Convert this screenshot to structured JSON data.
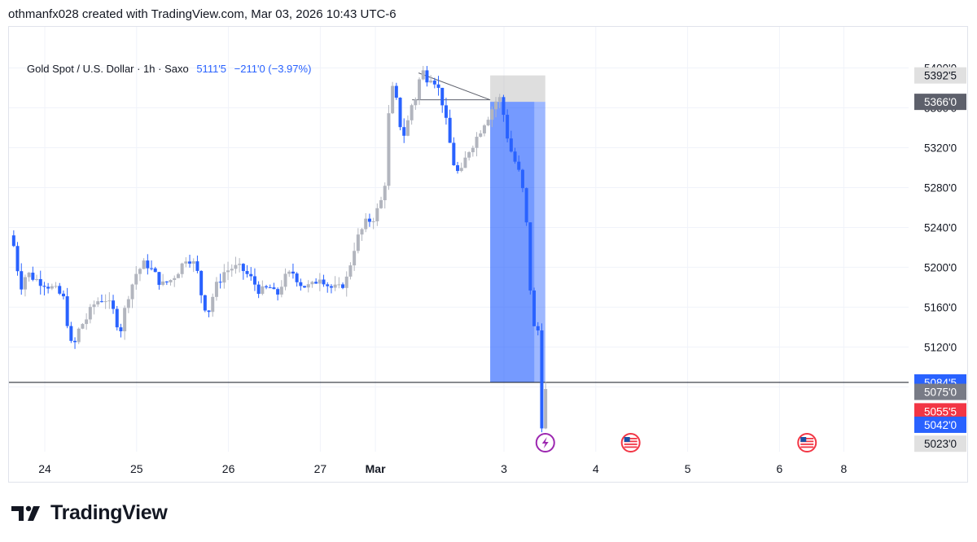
{
  "caption": "othmanfx028 created with TradingView.com, Mar 03, 2026 10:43 UTC-6",
  "legend": {
    "symbol": "Gold Spot / U.S. Dollar · 1h · Saxo",
    "last": "5111'5",
    "change": "−211'0 (−3.97%)"
  },
  "brand": {
    "name": "TradingView",
    "logo_icon": "tradingview-logo-icon"
  },
  "colors": {
    "up": "#b2b5be",
    "down": "#2962ff",
    "target_zone": "#b5b5b5",
    "stop_zone": "#2962ff",
    "price_line": "#131722",
    "grid": "#f0f3fa",
    "red_label": "#f23645"
  },
  "chart_data": {
    "type": "candlestick",
    "title": "Gold Spot / U.S. Dollar · 1h · Saxo",
    "ylim": [
      5015,
      5420
    ],
    "y_ticks": [
      "5400'0",
      "5360'0",
      "5320'0",
      "5280'0",
      "5240'0",
      "5200'0",
      "5160'0",
      "5120'0",
      "5080'0"
    ],
    "x_ticks": [
      {
        "label": "24",
        "day": 0
      },
      {
        "label": "25",
        "day": 1
      },
      {
        "label": "26",
        "day": 2
      },
      {
        "label": "27",
        "day": 3
      },
      {
        "label": "Mar",
        "day": 3.6
      },
      {
        "label": "3",
        "day": 5
      },
      {
        "label": "4",
        "day": 6
      },
      {
        "label": "5",
        "day": 7
      },
      {
        "label": "6",
        "day": 8
      },
      {
        "label": "8",
        "day": 8.7
      }
    ],
    "price_labels": [
      {
        "label": "5392'5",
        "value": 5392.5,
        "style": "light"
      },
      {
        "label": "5366'0",
        "value": 5366.0,
        "style": "dark"
      },
      {
        "label": "5084'5",
        "value": 5084.5,
        "style": "blue"
      },
      {
        "label": "5075'0",
        "value": 5075.0,
        "style": "gray"
      },
      {
        "label": "5055'5",
        "value": 5055.5,
        "style": "red"
      },
      {
        "label": "5042'0",
        "value": 5042.0,
        "style": "blue"
      },
      {
        "label": "5023'0",
        "value": 5023.0,
        "style": "light"
      }
    ],
    "horizontal_line": 5084.5,
    "position": {
      "type": "short",
      "entry": 5366.0,
      "stop": 5392.5,
      "target": 5084.5,
      "start_day": 4.85,
      "end_day": 5.45
    },
    "trend_lines": [
      {
        "from": [
          4.07,
          5395
        ],
        "to": [
          4.85,
          5368
        ]
      },
      {
        "from": [
          4.0,
          5368
        ],
        "to": [
          4.85,
          5368
        ]
      }
    ],
    "close_path": [
      [
        -0.38,
        5232
      ],
      [
        -0.35,
        5228
      ],
      [
        -0.3,
        5200
      ],
      [
        -0.25,
        5180
      ],
      [
        -0.2,
        5195
      ],
      [
        -0.1,
        5188
      ],
      [
        0.0,
        5184
      ],
      [
        0.1,
        5178
      ],
      [
        0.2,
        5170
      ],
      [
        0.3,
        5115
      ],
      [
        0.38,
        5140
      ],
      [
        0.45,
        5148
      ],
      [
        0.55,
        5165
      ],
      [
        0.65,
        5170
      ],
      [
        0.75,
        5155
      ],
      [
        0.82,
        5135
      ],
      [
        0.9,
        5170
      ],
      [
        1.0,
        5195
      ],
      [
        1.1,
        5205
      ],
      [
        1.18,
        5195
      ],
      [
        1.28,
        5182
      ],
      [
        1.38,
        5188
      ],
      [
        1.48,
        5200
      ],
      [
        1.55,
        5212
      ],
      [
        1.65,
        5200
      ],
      [
        1.72,
        5165
      ],
      [
        1.78,
        5155
      ],
      [
        1.85,
        5178
      ],
      [
        1.95,
        5195
      ],
      [
        2.05,
        5200
      ],
      [
        2.15,
        5198
      ],
      [
        2.25,
        5188
      ],
      [
        2.35,
        5175
      ],
      [
        2.45,
        5180
      ],
      [
        2.52,
        5170
      ],
      [
        2.6,
        5188
      ],
      [
        2.7,
        5195
      ],
      [
        2.8,
        5182
      ],
      [
        2.9,
        5180
      ],
      [
        3.0,
        5192
      ],
      [
        3.1,
        5180
      ],
      [
        3.2,
        5178
      ],
      [
        3.3,
        5190
      ],
      [
        3.35,
        5215
      ],
      [
        3.42,
        5232
      ],
      [
        3.5,
        5245
      ],
      [
        3.58,
        5250
      ],
      [
        3.65,
        5262
      ],
      [
        3.7,
        5280
      ],
      [
        3.75,
        5360
      ],
      [
        3.8,
        5385
      ],
      [
        3.85,
        5352
      ],
      [
        3.9,
        5330
      ],
      [
        3.95,
        5345
      ],
      [
        4.0,
        5365
      ],
      [
        4.05,
        5372
      ],
      [
        4.1,
        5400
      ],
      [
        4.15,
        5390
      ],
      [
        4.22,
        5393
      ],
      [
        4.28,
        5380
      ],
      [
        4.32,
        5370
      ],
      [
        4.38,
        5340
      ],
      [
        4.45,
        5305
      ],
      [
        4.52,
        5290
      ],
      [
        4.6,
        5315
      ],
      [
        4.7,
        5330
      ],
      [
        4.78,
        5345
      ],
      [
        4.85,
        5355
      ],
      [
        4.9,
        5366
      ],
      [
        4.97,
        5370
      ],
      [
        5.0,
        5350
      ],
      [
        5.05,
        5325
      ],
      [
        5.1,
        5310
      ],
      [
        5.15,
        5300
      ],
      [
        5.22,
        5270
      ],
      [
        5.27,
        5215
      ],
      [
        5.3,
        5150
      ],
      [
        5.35,
        5130
      ],
      [
        5.38,
        5140
      ],
      [
        5.41,
        5042
      ],
      [
        5.45,
        5070
      ],
      [
        5.47,
        5105
      ]
    ],
    "events": [
      {
        "day": 5.45,
        "icon": "lightning-icon"
      },
      {
        "day": 6.38,
        "icon": "us-flag-icon"
      },
      {
        "day": 8.3,
        "icon": "us-flag-icon"
      }
    ]
  }
}
